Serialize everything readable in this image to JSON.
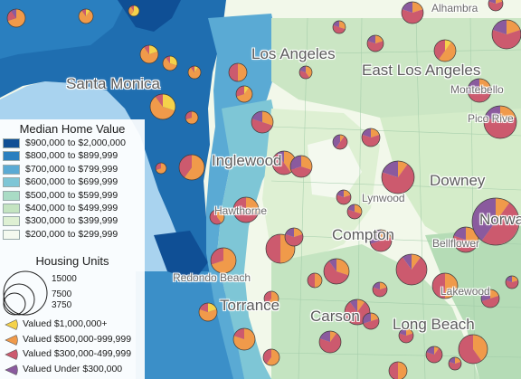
{
  "legend": {
    "value_title": "Median Home Value",
    "classes": [
      {
        "label": "$900,000 to $2,000,000",
        "color": "#0f4f95"
      },
      {
        "label": "$800,000 to $899,999",
        "color": "#2a7fbf"
      },
      {
        "label": "$700,000 to $799,999",
        "color": "#5aaad4"
      },
      {
        "label": "$600,000 to $699,999",
        "color": "#7ec6d6"
      },
      {
        "label": "$500,000 to $599,999",
        "color": "#a9dcc5"
      },
      {
        "label": "$400,000 to $499,999",
        "color": "#c4e4c1"
      },
      {
        "label": "$300,000 to $399,999",
        "color": "#def0d3"
      },
      {
        "label": "$200,000 to $299,999",
        "color": "#f4f9ef"
      }
    ],
    "size_title": "Housing Units",
    "sizes": [
      "15000",
      "7500",
      "3750"
    ],
    "pie_categories": [
      {
        "label": "Valued $1,000,000+",
        "color": "#f5d24a"
      },
      {
        "label": "Valued $500,000-999,999",
        "color": "#f09a4a"
      },
      {
        "label": "Valued $300,000-499,999",
        "color": "#cc5a6e"
      },
      {
        "label": "Valued Under $300,000",
        "color": "#8a5a9e"
      }
    ]
  },
  "places": [
    {
      "name": "Alhambra",
      "size": "sm"
    },
    {
      "name": "Los Angeles",
      "size": "big"
    },
    {
      "name": "East Los Angeles",
      "size": "big"
    },
    {
      "name": "Santa Monica",
      "size": "big"
    },
    {
      "name": "Montebello",
      "size": "sm"
    },
    {
      "name": "Pico Rive",
      "size": "sm"
    },
    {
      "name": "Inglewood",
      "size": "big"
    },
    {
      "name": "Downey",
      "size": "big"
    },
    {
      "name": "Lynwood",
      "size": "sm"
    },
    {
      "name": "Norwa",
      "size": "big"
    },
    {
      "name": "Hawthorne",
      "size": "sm"
    },
    {
      "name": "Compton",
      "size": "big"
    },
    {
      "name": "Bellflower",
      "size": "sm"
    },
    {
      "name": "Redondo Beach",
      "size": "sm"
    },
    {
      "name": "Lakewood",
      "size": "sm"
    },
    {
      "name": "Torrance",
      "size": "big"
    },
    {
      "name": "Carson",
      "size": "big"
    },
    {
      "name": "Long Beach",
      "size": "big"
    }
  ]
}
